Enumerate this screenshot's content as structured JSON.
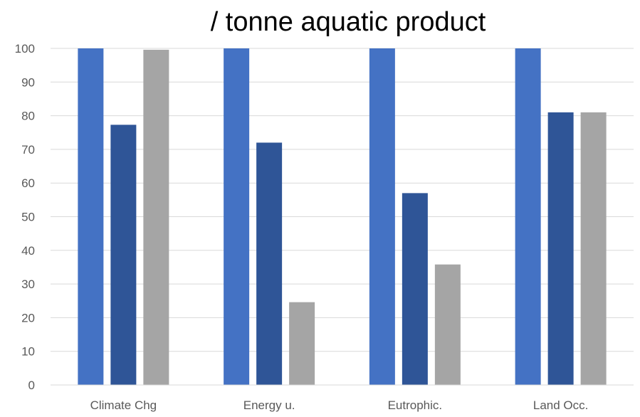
{
  "chart_data": {
    "type": "bar",
    "title": "/ tonne aquatic product",
    "xlabel": "",
    "ylabel": "",
    "categories": [
      "Climate Chg",
      "Energy u.",
      "Eutrophic.",
      "Land Occ."
    ],
    "series": [
      {
        "color": "#4472c4",
        "values": [
          100,
          100,
          100,
          100
        ]
      },
      {
        "color": "#2f5597",
        "values": [
          77.3,
          72,
          57,
          81
        ]
      },
      {
        "color": "#a5a5a5",
        "values": [
          99.6,
          24.6,
          35.8,
          81
        ]
      }
    ],
    "ylim": [
      0,
      100
    ],
    "yticks": [
      0,
      10,
      20,
      30,
      40,
      50,
      60,
      70,
      80,
      90,
      100
    ],
    "grid": true,
    "legend": "none"
  }
}
